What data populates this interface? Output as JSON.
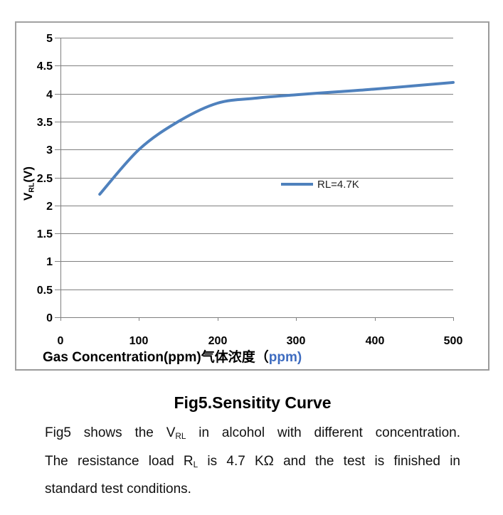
{
  "chart_data": {
    "type": "line",
    "x": [
      50,
      100,
      150,
      200,
      250,
      300,
      350,
      400,
      450,
      500
    ],
    "series": [
      {
        "name": "RL=4.7K",
        "values": [
          2.2,
          3.0,
          3.5,
          3.83,
          3.92,
          3.98,
          4.03,
          4.08,
          4.14,
          4.2
        ],
        "color": "#4f81bd"
      }
    ],
    "xlim": [
      0,
      500
    ],
    "ylim": [
      0,
      5
    ],
    "x_ticks": [
      0,
      100,
      200,
      300,
      400,
      500
    ],
    "y_ticks": [
      0,
      0.5,
      1,
      1.5,
      2,
      2.5,
      3,
      3.5,
      4,
      4.5,
      5
    ],
    "grid": true,
    "legend_label": "RL=4.7K",
    "legend_position": "center-right-inside",
    "xlabel_main": "Gas Concentration(ppm)气体浓度（",
    "xlabel_unit": "ppm)",
    "ylabel_pre": "V",
    "ylabel_sub": "RL",
    "ylabel_post": "(V)",
    "colors": {
      "line": "#4f81bd",
      "grid": "#808080",
      "axis": "#808080",
      "frame_border": "#a2a2a2",
      "xlabel_unit": "#3e6cc0",
      "tick_label": "#000000"
    }
  },
  "figure": {
    "title": "Fig5.Sensitity Curve",
    "caption": {
      "line1_pre": "Fig5 shows the V",
      "line1_sub": "RL",
      "line1_post": " in alcohol with different concentration.",
      "line2_pre": "The resistance load R",
      "line2_sub": "L",
      "line2_post": " is 4.7 KΩ and the test is finished in",
      "line3": "standard test conditions."
    }
  }
}
